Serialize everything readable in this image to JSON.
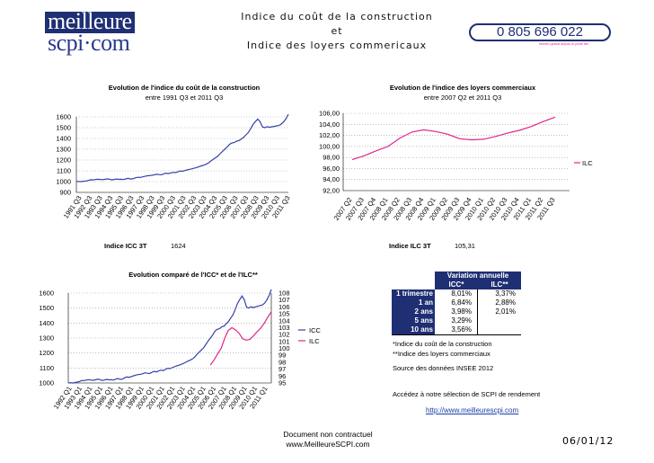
{
  "brand": {
    "logo_line1": "meilleure",
    "logo_line2": "scpi·com",
    "phone": "0 805 696 022",
    "phone_subtext": "Numéro gratuit depuis un poste fixe",
    "colors": {
      "navy": "#1f2f74",
      "blue": "#2b3a8c",
      "pink": "#e0258c",
      "line_blue": "#3340a8"
    }
  },
  "header": {
    "title_line1": "Indice du coût de la construction",
    "title_line2": "et",
    "title_line3": "Indice des loyers commericaux"
  },
  "icc_block": {
    "label": "Indice ICC 3T",
    "value": "1624"
  },
  "ilc_block": {
    "label": "Indice ILC 3T",
    "value": "105,31"
  },
  "variation": {
    "title": "Variation annuelle",
    "col1": "ICC*",
    "col2": "ILC**",
    "rows": [
      {
        "period": "1 trimestre",
        "icc": "8,01%",
        "ilc": "3,37%"
      },
      {
        "period": "1 an",
        "icc": "6,84%",
        "ilc": "2,88%"
      },
      {
        "period": "2 ans",
        "icc": "3,98%",
        "ilc": "2,01%"
      },
      {
        "period": "5 ans",
        "icc": "3,29%",
        "ilc": ""
      },
      {
        "period": "10 ans",
        "icc": "3,56%",
        "ilc": ""
      }
    ]
  },
  "notes": {
    "note1": "*Indice du coût de la construction",
    "note2": "**Indice des loyers commerciaux",
    "source": "Source des données INSEE 2012",
    "access": "Accédez à notre sélection de SCPI de rendement",
    "link": "http://www.meilleurescpi.com"
  },
  "footer": {
    "line1": "Document non contractuel",
    "line2": "www.MeilleureSCPI.com",
    "date": "06/01/12"
  },
  "chart_data": [
    {
      "type": "line",
      "id": "icc",
      "title": "Evolution de l'indice du coût de la construction",
      "subtitle": "entre 1991 Q3 et 2011 Q3",
      "legend": "",
      "ylim": [
        900,
        1600
      ],
      "yticks": [
        "900",
        "1000",
        "1100",
        "1200",
        "1300",
        "1400",
        "1500",
        "1600"
      ],
      "tick_labels": [
        "1991 Q3",
        "1992 Q3",
        "1993 Q3",
        "1994 Q3",
        "1995 Q3",
        "1996 Q3",
        "1997 Q3",
        "1998 Q3",
        "1999 Q3",
        "2000 Q3",
        "2001 Q3",
        "2002 Q3",
        "2003 Q3",
        "2004 Q3",
        "2005 Q3",
        "2006 Q3",
        "2007 Q3",
        "2008 Q3",
        "2009 Q3",
        "2010 Q3",
        "2011 Q3"
      ],
      "series": [
        {
          "name": "ICC",
          "values": [
            1000,
            1002,
            1000,
            1003,
            1006,
            1010,
            1017,
            1016,
            1019,
            1022,
            1020,
            1018,
            1021,
            1025,
            1023,
            1016,
            1020,
            1024,
            1021,
            1022,
            1019,
            1025,
            1030,
            1024,
            1026,
            1035,
            1040,
            1038,
            1043,
            1048,
            1053,
            1056,
            1058,
            1062,
            1068,
            1065,
            1063,
            1070,
            1078,
            1074,
            1080,
            1086,
            1083,
            1090,
            1098,
            1096,
            1102,
            1108,
            1114,
            1118,
            1124,
            1130,
            1138,
            1146,
            1152,
            1160,
            1172,
            1190,
            1205,
            1220,
            1235,
            1258,
            1280,
            1300,
            1320,
            1345,
            1358,
            1362,
            1375,
            1380,
            1395,
            1410,
            1433,
            1455,
            1490,
            1530,
            1556,
            1580,
            1556,
            1507,
            1500,
            1509,
            1503,
            1508,
            1512,
            1517,
            1520,
            1533,
            1554,
            1583,
            1624
          ]
        }
      ]
    },
    {
      "type": "line",
      "id": "ilc",
      "title": "Evolution de l'indice des loyers commerciaux",
      "subtitle": "entre 2007 Q2 et 2011 Q3",
      "legend": "ILC",
      "ylim": [
        92,
        106
      ],
      "yticks": [
        "92,00",
        "94,00",
        "96,00",
        "98,00",
        "100,00",
        "102,00",
        "104,00",
        "106,00"
      ],
      "tick_labels": [
        "2007 Q2",
        "2007 Q3",
        "2007 Q4",
        "2008 Q1",
        "2008 Q2",
        "2008 Q3",
        "2008 Q4",
        "2009 Q1",
        "2009 Q2",
        "2009 Q3",
        "2009 Q4",
        "2010 Q1",
        "2010 Q2",
        "2010 Q3",
        "2010 Q4",
        "2011 Q1",
        "2011 Q2",
        "2011 Q3"
      ],
      "series": [
        {
          "name": "ILC",
          "values": [
            97.6,
            98.3,
            99.2,
            100.0,
            101.5,
            102.6,
            103.0,
            102.7,
            102.2,
            101.4,
            101.2,
            101.3,
            101.8,
            102.4,
            102.9,
            103.6,
            104.5,
            105.3
          ]
        }
      ]
    },
    {
      "type": "line",
      "id": "combined",
      "title": "Evolution comparé de l'ICC* et de l'ILC**",
      "ylim_left": [
        1000,
        1600
      ],
      "ylim_right": [
        95,
        108
      ],
      "yticks_left": [
        "1000",
        "1100",
        "1200",
        "1300",
        "1400",
        "1500",
        "1600"
      ],
      "yticks_right": [
        "95",
        "96",
        "97",
        "98",
        "99",
        "100",
        "101",
        "102",
        "103",
        "104",
        "105",
        "106",
        "107",
        "108"
      ],
      "tick_labels": [
        "1992 Q1",
        "1993 Q1",
        "1994 Q1",
        "1995 Q1",
        "1996 Q1",
        "1997 Q1",
        "1998 Q1",
        "1999 Q1",
        "2000 Q1",
        "2001 Q1",
        "2002 Q1",
        "2003 Q1",
        "2004 Q1",
        "2005 Q1",
        "2006 Q1",
        "2007 Q1",
        "2008 Q1",
        "2009 Q1",
        "2010 Q1",
        "2011 Q1"
      ],
      "legend": [
        "ICC",
        "ILC"
      ],
      "series": [
        {
          "name": "ICC",
          "axis": "left",
          "start_index": 0,
          "values": [
            1000,
            1002,
            1000,
            1003,
            1006,
            1010,
            1017,
            1016,
            1019,
            1022,
            1020,
            1018,
            1021,
            1025,
            1023,
            1016,
            1020,
            1024,
            1021,
            1022,
            1019,
            1025,
            1030,
            1024,
            1026,
            1035,
            1040,
            1038,
            1043,
            1048,
            1053,
            1056,
            1058,
            1062,
            1068,
            1065,
            1063,
            1070,
            1078,
            1074,
            1080,
            1086,
            1083,
            1090,
            1098,
            1096,
            1102,
            1108,
            1114,
            1118,
            1124,
            1130,
            1138,
            1146,
            1152,
            1160,
            1172,
            1190,
            1205,
            1220,
            1235,
            1258,
            1280,
            1300,
            1320,
            1345,
            1358,
            1362,
            1375,
            1380,
            1395,
            1410,
            1433,
            1455,
            1490,
            1530,
            1556,
            1580,
            1556,
            1507,
            1500,
            1509,
            1503,
            1508,
            1512,
            1517,
            1520,
            1533,
            1554,
            1583,
            1624
          ]
        },
        {
          "name": "ILC",
          "axis": "right",
          "start_index": 63,
          "values": [
            97.6,
            98.3,
            99.2,
            100.0,
            101.5,
            102.6,
            103.0,
            102.7,
            102.2,
            101.4,
            101.2,
            101.3,
            101.8,
            102.4,
            102.9,
            103.6,
            104.5,
            105.3
          ]
        }
      ]
    }
  ]
}
